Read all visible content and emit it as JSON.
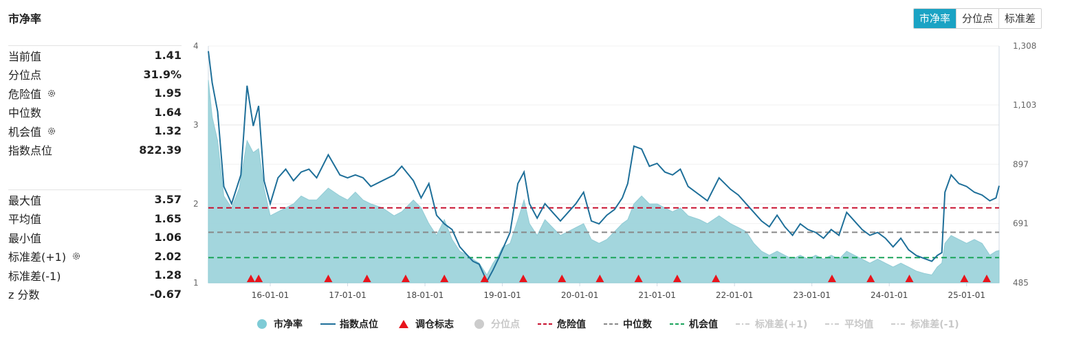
{
  "title": "市净率",
  "tabs": [
    "市净率",
    "分位点",
    "标准差"
  ],
  "active_tab": 0,
  "stats_top": [
    {
      "label": "当前值",
      "value": "1.41",
      "gear": false
    },
    {
      "label": "分位点",
      "value": "31.9%",
      "gear": false
    },
    {
      "label": "危险值",
      "value": "1.95",
      "gear": true
    },
    {
      "label": "中位数",
      "value": "1.64",
      "gear": false
    },
    {
      "label": "机会值",
      "value": "1.32",
      "gear": true
    },
    {
      "label": "指数点位",
      "value": "822.39",
      "gear": false
    }
  ],
  "stats_bottom": [
    {
      "label": "最大值",
      "value": "3.57",
      "gear": false
    },
    {
      "label": "平均值",
      "value": "1.65",
      "gear": false
    },
    {
      "label": "最小值",
      "value": "1.06",
      "gear": false
    },
    {
      "label": "标准差(+1)",
      "value": "2.02",
      "gear": true
    },
    {
      "label": "标准差(-1)",
      "value": "1.28",
      "gear": false
    },
    {
      "label": "z 分数",
      "value": "-0.67",
      "gear": false
    }
  ],
  "legend": [
    {
      "label": "市净率",
      "kind": "dot",
      "color": "#7ecbd6",
      "active": true
    },
    {
      "label": "指数点位",
      "kind": "line",
      "color": "#1e6f99",
      "active": true
    },
    {
      "label": "调仓标志",
      "kind": "triangle",
      "color": "#e8141c",
      "active": true
    },
    {
      "label": "分位点",
      "kind": "dot",
      "color": "#cccccc",
      "active": false
    },
    {
      "label": "危险值",
      "kind": "dash",
      "color": "#c8102e",
      "active": true
    },
    {
      "label": "中位数",
      "kind": "dash",
      "color": "#888888",
      "active": true
    },
    {
      "label": "机会值",
      "kind": "dash",
      "color": "#1aa35a",
      "active": true
    },
    {
      "label": "标准差(+1)",
      "kind": "dashdot",
      "color": "#cccccc",
      "active": false
    },
    {
      "label": "平均值",
      "kind": "dashdot",
      "color": "#cccccc",
      "active": false
    },
    {
      "label": "标准差(-1)",
      "kind": "dashdot",
      "color": "#cccccc",
      "active": false
    }
  ],
  "chart_data": {
    "type": "area",
    "x_tick_labels": [
      "16-01-01",
      "17-01-01",
      "18-01-01",
      "19-01-01",
      "20-01-01",
      "21-01-01",
      "22-01-01",
      "23-01-01",
      "24-01-01",
      "25-01-01"
    ],
    "x_range": [
      2015.2,
      2025.42
    ],
    "y_left_ticks": [
      "1",
      "2",
      "3",
      "4"
    ],
    "y_left_range": [
      1,
      4
    ],
    "y_right_ticks": [
      "485",
      "691",
      "897",
      "1,103",
      "1,308"
    ],
    "y_right_range": [
      485,
      1308
    ],
    "reference_lines": [
      {
        "name": "危险值",
        "value": 1.95,
        "color": "#c8102e"
      },
      {
        "name": "中位数",
        "value": 1.64,
        "color": "#888888"
      },
      {
        "name": "机会值",
        "value": 1.32,
        "color": "#1aa35a"
      }
    ],
    "series": [
      {
        "name": "市净率",
        "axis": "left",
        "color": "#9fd4dc",
        "points": [
          [
            2015.2,
            3.57
          ],
          [
            2015.25,
            3.1
          ],
          [
            2015.32,
            2.8
          ],
          [
            2015.4,
            2.1
          ],
          [
            2015.5,
            1.95
          ],
          [
            2015.6,
            2.2
          ],
          [
            2015.7,
            2.8
          ],
          [
            2015.78,
            2.65
          ],
          [
            2015.85,
            2.7
          ],
          [
            2015.92,
            2.2
          ],
          [
            2016.0,
            1.85
          ],
          [
            2016.1,
            1.9
          ],
          [
            2016.2,
            1.95
          ],
          [
            2016.3,
            2.0
          ],
          [
            2016.4,
            2.1
          ],
          [
            2016.5,
            2.05
          ],
          [
            2016.6,
            2.05
          ],
          [
            2016.75,
            2.2
          ],
          [
            2016.9,
            2.1
          ],
          [
            2017.0,
            2.05
          ],
          [
            2017.1,
            2.15
          ],
          [
            2017.2,
            2.05
          ],
          [
            2017.3,
            2.0
          ],
          [
            2017.45,
            1.95
          ],
          [
            2017.6,
            1.85
          ],
          [
            2017.7,
            1.9
          ],
          [
            2017.85,
            2.05
          ],
          [
            2017.95,
            1.95
          ],
          [
            2018.05,
            1.75
          ],
          [
            2018.15,
            1.6
          ],
          [
            2018.25,
            1.8
          ],
          [
            2018.35,
            1.55
          ],
          [
            2018.45,
            1.4
          ],
          [
            2018.55,
            1.35
          ],
          [
            2018.62,
            1.3
          ],
          [
            2018.7,
            1.25
          ],
          [
            2018.8,
            1.1
          ],
          [
            2018.88,
            1.25
          ],
          [
            2018.95,
            1.35
          ],
          [
            2019.0,
            1.45
          ],
          [
            2019.1,
            1.5
          ],
          [
            2019.2,
            1.8
          ],
          [
            2019.28,
            2.05
          ],
          [
            2019.35,
            1.75
          ],
          [
            2019.45,
            1.6
          ],
          [
            2019.55,
            1.8
          ],
          [
            2019.65,
            1.7
          ],
          [
            2019.75,
            1.6
          ],
          [
            2019.85,
            1.65
          ],
          [
            2019.95,
            1.7
          ],
          [
            2020.05,
            1.75
          ],
          [
            2020.15,
            1.55
          ],
          [
            2020.25,
            1.5
          ],
          [
            2020.35,
            1.55
          ],
          [
            2020.45,
            1.65
          ],
          [
            2020.55,
            1.75
          ],
          [
            2020.62,
            1.8
          ],
          [
            2020.7,
            2.0
          ],
          [
            2020.8,
            2.1
          ],
          [
            2020.9,
            2.0
          ],
          [
            2021.0,
            2.0
          ],
          [
            2021.1,
            1.95
          ],
          [
            2021.2,
            1.9
          ],
          [
            2021.3,
            1.95
          ],
          [
            2021.4,
            1.85
          ],
          [
            2021.55,
            1.8
          ],
          [
            2021.65,
            1.75
          ],
          [
            2021.8,
            1.85
          ],
          [
            2021.95,
            1.75
          ],
          [
            2022.05,
            1.7
          ],
          [
            2022.15,
            1.65
          ],
          [
            2022.25,
            1.5
          ],
          [
            2022.35,
            1.4
          ],
          [
            2022.45,
            1.35
          ],
          [
            2022.55,
            1.4
          ],
          [
            2022.65,
            1.35
          ],
          [
            2022.75,
            1.3
          ],
          [
            2022.85,
            1.35
          ],
          [
            2022.95,
            1.3
          ],
          [
            2023.05,
            1.35
          ],
          [
            2023.15,
            1.3
          ],
          [
            2023.25,
            1.35
          ],
          [
            2023.35,
            1.3
          ],
          [
            2023.45,
            1.4
          ],
          [
            2023.55,
            1.35
          ],
          [
            2023.65,
            1.3
          ],
          [
            2023.75,
            1.25
          ],
          [
            2023.85,
            1.3
          ],
          [
            2023.95,
            1.25
          ],
          [
            2024.05,
            1.2
          ],
          [
            2024.15,
            1.25
          ],
          [
            2024.25,
            1.2
          ],
          [
            2024.35,
            1.15
          ],
          [
            2024.45,
            1.12
          ],
          [
            2024.55,
            1.1
          ],
          [
            2024.62,
            1.2
          ],
          [
            2024.68,
            1.25
          ],
          [
            2024.72,
            1.5
          ],
          [
            2024.8,
            1.6
          ],
          [
            2024.9,
            1.55
          ],
          [
            2025.0,
            1.5
          ],
          [
            2025.1,
            1.55
          ],
          [
            2025.2,
            1.5
          ],
          [
            2025.3,
            1.35
          ],
          [
            2025.38,
            1.4
          ],
          [
            2025.42,
            1.41
          ]
        ]
      },
      {
        "name": "指数点位",
        "axis": "right",
        "color": "#1e6f99",
        "points": [
          [
            2015.2,
            1290
          ],
          [
            2015.25,
            1180
          ],
          [
            2015.32,
            1080
          ],
          [
            2015.4,
            820
          ],
          [
            2015.5,
            760
          ],
          [
            2015.62,
            860
          ],
          [
            2015.7,
            1170
          ],
          [
            2015.78,
            1030
          ],
          [
            2015.85,
            1100
          ],
          [
            2015.92,
            840
          ],
          [
            2016.0,
            760
          ],
          [
            2016.1,
            850
          ],
          [
            2016.2,
            880
          ],
          [
            2016.3,
            840
          ],
          [
            2016.4,
            870
          ],
          [
            2016.5,
            880
          ],
          [
            2016.6,
            850
          ],
          [
            2016.75,
            930
          ],
          [
            2016.9,
            860
          ],
          [
            2017.0,
            850
          ],
          [
            2017.1,
            860
          ],
          [
            2017.2,
            850
          ],
          [
            2017.3,
            820
          ],
          [
            2017.45,
            840
          ],
          [
            2017.6,
            860
          ],
          [
            2017.7,
            890
          ],
          [
            2017.85,
            840
          ],
          [
            2017.95,
            780
          ],
          [
            2018.05,
            830
          ],
          [
            2018.15,
            720
          ],
          [
            2018.25,
            690
          ],
          [
            2018.35,
            670
          ],
          [
            2018.45,
            610
          ],
          [
            2018.55,
            580
          ],
          [
            2018.62,
            560
          ],
          [
            2018.7,
            550
          ],
          [
            2018.8,
            490
          ],
          [
            2018.88,
            530
          ],
          [
            2018.95,
            570
          ],
          [
            2019.0,
            600
          ],
          [
            2019.1,
            660
          ],
          [
            2019.2,
            830
          ],
          [
            2019.28,
            870
          ],
          [
            2019.35,
            760
          ],
          [
            2019.45,
            710
          ],
          [
            2019.55,
            760
          ],
          [
            2019.65,
            730
          ],
          [
            2019.75,
            700
          ],
          [
            2019.85,
            730
          ],
          [
            2019.95,
            760
          ],
          [
            2020.05,
            800
          ],
          [
            2020.15,
            700
          ],
          [
            2020.25,
            690
          ],
          [
            2020.35,
            720
          ],
          [
            2020.45,
            740
          ],
          [
            2020.55,
            780
          ],
          [
            2020.62,
            830
          ],
          [
            2020.7,
            960
          ],
          [
            2020.8,
            950
          ],
          [
            2020.9,
            890
          ],
          [
            2021.0,
            900
          ],
          [
            2021.1,
            870
          ],
          [
            2021.2,
            860
          ],
          [
            2021.3,
            880
          ],
          [
            2021.4,
            820
          ],
          [
            2021.55,
            790
          ],
          [
            2021.65,
            770
          ],
          [
            2021.8,
            850
          ],
          [
            2021.95,
            810
          ],
          [
            2022.05,
            790
          ],
          [
            2022.15,
            760
          ],
          [
            2022.25,
            730
          ],
          [
            2022.35,
            700
          ],
          [
            2022.45,
            680
          ],
          [
            2022.55,
            720
          ],
          [
            2022.65,
            680
          ],
          [
            2022.75,
            650
          ],
          [
            2022.85,
            690
          ],
          [
            2022.95,
            670
          ],
          [
            2023.05,
            660
          ],
          [
            2023.15,
            640
          ],
          [
            2023.25,
            670
          ],
          [
            2023.35,
            650
          ],
          [
            2023.45,
            730
          ],
          [
            2023.55,
            700
          ],
          [
            2023.65,
            670
          ],
          [
            2023.75,
            650
          ],
          [
            2023.85,
            660
          ],
          [
            2023.95,
            640
          ],
          [
            2024.05,
            610
          ],
          [
            2024.15,
            640
          ],
          [
            2024.25,
            600
          ],
          [
            2024.35,
            580
          ],
          [
            2024.45,
            570
          ],
          [
            2024.55,
            560
          ],
          [
            2024.62,
            580
          ],
          [
            2024.68,
            590
          ],
          [
            2024.72,
            800
          ],
          [
            2024.8,
            860
          ],
          [
            2024.9,
            830
          ],
          [
            2025.0,
            820
          ],
          [
            2025.1,
            800
          ],
          [
            2025.2,
            790
          ],
          [
            2025.3,
            770
          ],
          [
            2025.38,
            780
          ],
          [
            2025.42,
            822.39
          ]
        ]
      }
    ],
    "markers": {
      "name": "调仓标志",
      "color": "#e8141c",
      "x": [
        2015.75,
        2015.85,
        2016.75,
        2017.25,
        2017.75,
        2018.25,
        2018.77,
        2019.27,
        2019.77,
        2020.26,
        2020.76,
        2021.26,
        2021.76,
        2023.26,
        2023.76,
        2024.26,
        2024.97,
        2025.26
      ]
    }
  }
}
